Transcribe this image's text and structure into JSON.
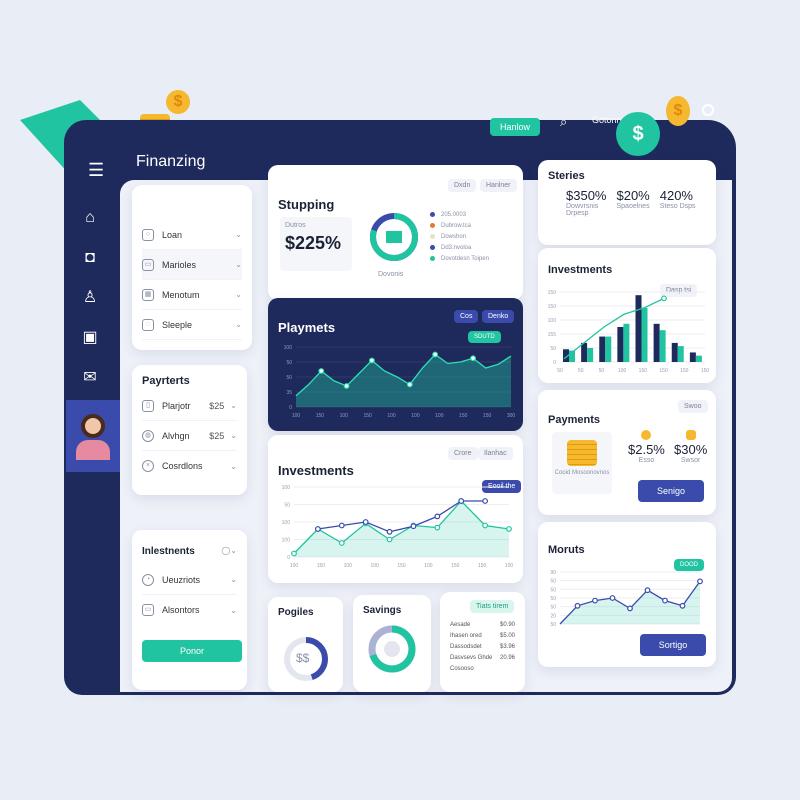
{
  "app": {
    "title": "Finanzing",
    "header_button": "Hanlow",
    "header_link": "Gotonn"
  },
  "colors": {
    "navy": "#1f2a5c",
    "teal": "#20c4a0",
    "blue": "#3a4bab",
    "gold": "#f5b82e"
  },
  "sidebar": {
    "icons": [
      "menu-icon",
      "home-icon",
      "camera-icon",
      "user-icon",
      "wallet-icon",
      "mail-icon"
    ]
  },
  "menu_panel": {
    "items": [
      {
        "label": "Loan",
        "icon": "bulb-icon"
      },
      {
        "label": "Marioles",
        "icon": "card-icon"
      },
      {
        "label": "Menotum",
        "icon": "image-icon"
      },
      {
        "label": "Sleeple",
        "icon": "chat-icon"
      }
    ]
  },
  "payments_panel": {
    "title": "Payrterts",
    "items": [
      {
        "label": "Plarjotr",
        "amount": "$25"
      },
      {
        "label": "Alvhgn",
        "amount": "$25"
      },
      {
        "label": "Cosrdlons",
        "amount": ""
      }
    ]
  },
  "investments_panel": {
    "title": "Inlestnents",
    "items": [
      {
        "label": "Ueuzriots"
      },
      {
        "label": "Alsontors"
      }
    ],
    "button": "Ponor"
  },
  "stupping": {
    "title": "Stupping",
    "pills": [
      "Dxdn",
      "Hanlner"
    ],
    "sub": "Dutros",
    "value": "$225%",
    "donut_label": "Dovonis",
    "donut_fraction": 0.8,
    "legend": [
      {
        "label": "205.0003",
        "color": "#3a4bab"
      },
      {
        "label": "Dubrow.tca",
        "color": "#e07b39"
      },
      {
        "label": "Dowshon",
        "color": "#e6e0c8"
      },
      {
        "label": "Dd3.nvoloa",
        "color": "#3a4bab"
      },
      {
        "label": "Dovotdesn Toipen",
        "color": "#20c4a0"
      }
    ]
  },
  "stories": {
    "title": "Steries",
    "stats": [
      {
        "value": "$350%",
        "label": "Dowvrsnis"
      },
      {
        "value": "$20%",
        "label": "Spaoelnes"
      },
      {
        "value": "420%",
        "label": "Steso Dsps"
      }
    ],
    "extra": "Drpesp"
  },
  "payments_card": {
    "title": "Payments",
    "pill": "Swoo",
    "coin_label": "Cooid Mosoonovnos",
    "stats": [
      {
        "value": "$2.5%",
        "label": "Esso"
      },
      {
        "value": "$30%",
        "label": "Swsor"
      }
    ],
    "button": "Senigo"
  },
  "pogiles": {
    "title": "Pogiles",
    "symbol": "$$",
    "fraction": 0.45
  },
  "savings": {
    "title": "Savings",
    "fraction": 0.7
  },
  "list_card": {
    "pill": "Tiats tirem",
    "rows": [
      {
        "label": "Aesade",
        "value": "$0.90"
      },
      {
        "label": "Ihasen ored",
        "value": "$5.00"
      },
      {
        "label": "Dassodsdet",
        "value": "$3.96"
      },
      {
        "label": "Dasvsevs Ghde",
        "value": "20.96"
      },
      {
        "label": "Cosooso",
        "value": ""
      }
    ]
  },
  "chart_data": [
    {
      "id": "playmets",
      "type": "area",
      "title": "Playmets",
      "pills": [
        "Cos",
        "Denko"
      ],
      "badge": "SDUTD",
      "ylabels": [
        "0",
        "35",
        "50",
        "50",
        "100"
      ],
      "xlabels": [
        "100",
        "150",
        "100",
        "150",
        "100",
        "100",
        "100",
        "150",
        "150",
        "300"
      ],
      "values": [
        15,
        30,
        48,
        35,
        28,
        45,
        62,
        48,
        40,
        30,
        52,
        70,
        58,
        60,
        65,
        52,
        57,
        68
      ],
      "markers": [
        2,
        4,
        6,
        9,
        11,
        14
      ],
      "ylim": [
        0,
        80
      ]
    },
    {
      "id": "investments-line",
      "type": "line",
      "title": "Investments",
      "pills": [
        "Crore",
        "Ilanhac"
      ],
      "badge": "Eooil the",
      "ylabels": [
        "0",
        "100",
        "100",
        "50",
        "100"
      ],
      "xlabels": [
        "100",
        "150",
        "100",
        "100",
        "150",
        "100",
        "150",
        "150",
        "100"
      ],
      "series": [
        {
          "color": "#20c4a0",
          "values": [
            5,
            40,
            20,
            48,
            25,
            45,
            42,
            80,
            45,
            40
          ]
        },
        {
          "color": "#3a4bab",
          "values": [
            null,
            40,
            45,
            50,
            36,
            44,
            58,
            80,
            80,
            null
          ]
        }
      ],
      "ylim": [
        0,
        100
      ]
    },
    {
      "id": "investments-bar",
      "type": "bar",
      "title": "Investments",
      "badge": "Dasp tsi",
      "ylabels": [
        "0",
        "50",
        "155",
        "100",
        "150",
        "150"
      ],
      "xlabels": [
        "50",
        "50",
        "50",
        "100",
        "150",
        "150",
        "150",
        "150"
      ],
      "series": [
        {
          "color": "#1f2a5c",
          "values": [
            20,
            30,
            40,
            55,
            105,
            60,
            30,
            15
          ]
        },
        {
          "color": "#20c4a0",
          "values": [
            18,
            22,
            40,
            60,
            85,
            50,
            25,
            10
          ]
        }
      ],
      "trend": [
        5,
        30,
        55,
        75,
        85,
        100
      ],
      "ylim": [
        0,
        110
      ]
    },
    {
      "id": "moruts",
      "type": "area",
      "title": "Moruts",
      "badge": "DOOD",
      "ylabels": [
        "50",
        "20",
        "50",
        "50",
        "50",
        "50",
        "90"
      ],
      "values": [
        0,
        35,
        45,
        50,
        30,
        65,
        45,
        35,
        82
      ],
      "markers": [
        1,
        2,
        3,
        4,
        5,
        6,
        7,
        8
      ],
      "ylim": [
        0,
        100
      ],
      "button": "Sortigo"
    }
  ]
}
